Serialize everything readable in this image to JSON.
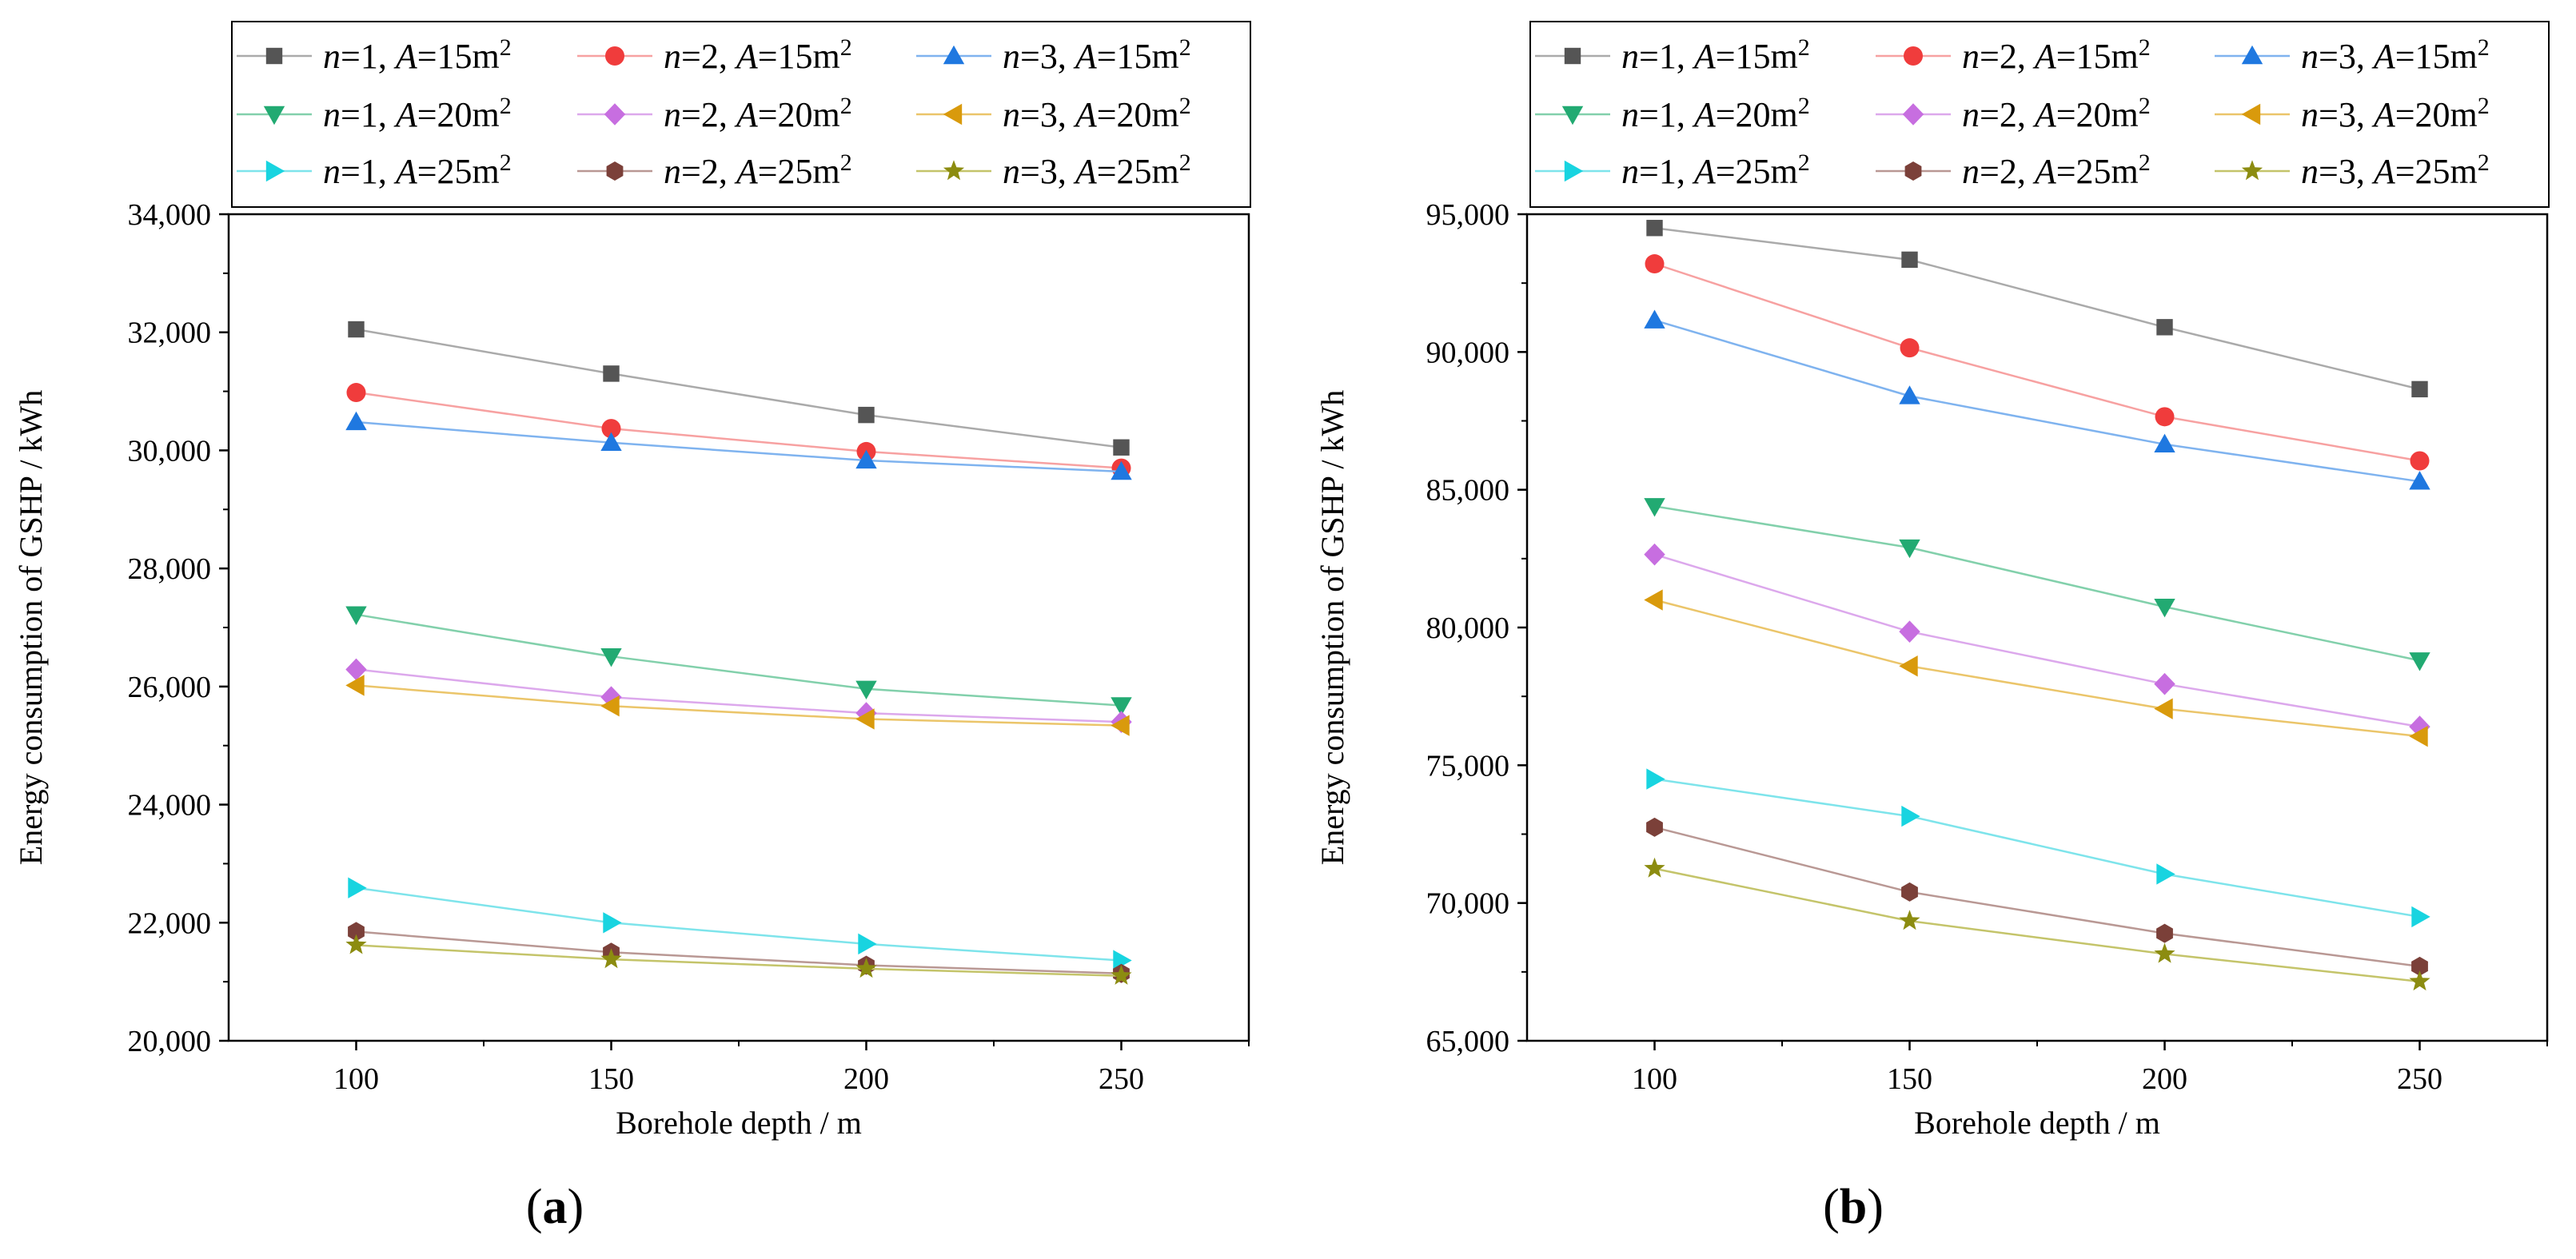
{
  "figure": {
    "marker_legend": {
      "square": "square-marker",
      "circle": "circle-marker",
      "triangle-up": "triangle-up-marker",
      "triangle-down": "triangle-down-marker",
      "diamond": "diamond-marker",
      "triangle-left": "triangle-left-marker",
      "triangle-right": "triangle-right-marker",
      "hexagon": "hexagon-marker",
      "star": "star-marker"
    }
  },
  "chart_data": [
    {
      "type": "line",
      "panel_label": "a",
      "panel_label_text": "(a)",
      "xlabel": "Borehole depth / m",
      "ylabel": "Energy consumption of GSHP / kWh",
      "x": [
        100,
        150,
        200,
        250
      ],
      "xlim": [
        75,
        275
      ],
      "xticks": [
        "100",
        "150",
        "200",
        "250"
      ],
      "ylim": [
        20000,
        34000
      ],
      "yticks": [
        "20,000",
        "22,000",
        "24,000",
        "26,000",
        "28,000",
        "30,000",
        "32,000",
        "34,000"
      ],
      "grid": false,
      "legend_position": "top",
      "series": [
        {
          "name": "n=1, A=15m2",
          "n": "1",
          "A": "15",
          "color": "#555555",
          "line_color": "#aaaaaa",
          "marker": "square",
          "values": [
            32050,
            31300,
            30600,
            30050
          ]
        },
        {
          "name": "n=2, A=15m2",
          "n": "2",
          "A": "15",
          "color": "#f03c3c",
          "line_color": "#f7a1a1",
          "marker": "circle",
          "values": [
            30980,
            30370,
            29980,
            29700
          ]
        },
        {
          "name": "n=3, A=15m2",
          "n": "3",
          "A": "15",
          "color": "#1f78e0",
          "line_color": "#7fb3ef",
          "marker": "triangle-up",
          "values": [
            30480,
            30130,
            29830,
            29640
          ]
        },
        {
          "name": "n=1, A=20m2",
          "n": "1",
          "A": "20",
          "color": "#22aa72",
          "line_color": "#82d0ab",
          "marker": "triangle-down",
          "values": [
            27220,
            26510,
            25960,
            25680
          ]
        },
        {
          "name": "n=2, A=20m2",
          "n": "2",
          "A": "20",
          "color": "#c76ee0",
          "line_color": "#dca8ec",
          "marker": "diamond",
          "values": [
            26290,
            25820,
            25550,
            25400
          ]
        },
        {
          "name": "n=3, A=20m2",
          "n": "3",
          "A": "20",
          "color": "#d99a0c",
          "line_color": "#ebc56a",
          "marker": "triangle-left",
          "values": [
            26020,
            25670,
            25450,
            25340
          ]
        },
        {
          "name": "n=1, A=25m2",
          "n": "1",
          "A": "25",
          "color": "#18d4e0",
          "line_color": "#7ee4eb",
          "marker": "triangle-right",
          "values": [
            22590,
            22000,
            21640,
            21360
          ]
        },
        {
          "name": "n=2, A=25m2",
          "n": "2",
          "A": "25",
          "color": "#7b4039",
          "line_color": "#b99894",
          "marker": "hexagon",
          "values": [
            21850,
            21500,
            21280,
            21140
          ]
        },
        {
          "name": "n=3, A=25m2",
          "n": "3",
          "A": "25",
          "color": "#8c8c10",
          "line_color": "#c4c46a",
          "marker": "star",
          "values": [
            21620,
            21380,
            21220,
            21100
          ]
        }
      ]
    },
    {
      "type": "line",
      "panel_label": "b",
      "panel_label_text": "(b)",
      "xlabel": "Borehole depth / m",
      "ylabel": "Energy consumption of GSHP / kWh",
      "x": [
        100,
        150,
        200,
        250
      ],
      "xlim": [
        75,
        275
      ],
      "xticks": [
        "100",
        "150",
        "200",
        "250"
      ],
      "ylim": [
        65000,
        95000
      ],
      "yticks": [
        "65,000",
        "70,000",
        "75,000",
        "80,000",
        "85,000",
        "90,000",
        "95,000"
      ],
      "grid": false,
      "legend_position": "top",
      "series": [
        {
          "name": "n=1, A=15m2",
          "n": "1",
          "A": "15",
          "color": "#555555",
          "line_color": "#aaaaaa",
          "marker": "square",
          "values": [
            94500,
            93350,
            90900,
            88650
          ]
        },
        {
          "name": "n=2, A=15m2",
          "n": "2",
          "A": "15",
          "color": "#f03c3c",
          "line_color": "#f7a1a1",
          "marker": "circle",
          "values": [
            93200,
            90150,
            87650,
            86050
          ]
        },
        {
          "name": "n=3, A=15m2",
          "n": "3",
          "A": "15",
          "color": "#1f78e0",
          "line_color": "#7fb3ef",
          "marker": "triangle-up",
          "values": [
            91150,
            88400,
            86650,
            85300
          ]
        },
        {
          "name": "n=1, A=20m2",
          "n": "1",
          "A": "20",
          "color": "#22aa72",
          "line_color": "#82d0ab",
          "marker": "triangle-down",
          "values": [
            84400,
            82900,
            80750,
            78800
          ]
        },
        {
          "name": "n=2, A=20m2",
          "n": "2",
          "A": "20",
          "color": "#c76ee0",
          "line_color": "#dca8ec",
          "marker": "diamond",
          "values": [
            82650,
            79850,
            77950,
            76400
          ]
        },
        {
          "name": "n=3, A=20m2",
          "n": "3",
          "A": "20",
          "color": "#d99a0c",
          "line_color": "#ebc56a",
          "marker": "triangle-left",
          "values": [
            81000,
            78600,
            77050,
            76050
          ]
        },
        {
          "name": "n=1, A=25m2",
          "n": "1",
          "A": "25",
          "color": "#18d4e0",
          "line_color": "#7ee4eb",
          "marker": "triangle-right",
          "values": [
            74500,
            73150,
            71050,
            69500
          ]
        },
        {
          "name": "n=2, A=25m2",
          "n": "2",
          "A": "25",
          "color": "#7b4039",
          "line_color": "#b99894",
          "marker": "hexagon",
          "values": [
            72750,
            70400,
            68900,
            67700
          ]
        },
        {
          "name": "n=3, A=25m2",
          "n": "3",
          "A": "25",
          "color": "#8c8c10",
          "line_color": "#c4c46a",
          "marker": "star",
          "values": [
            71250,
            69350,
            68150,
            67150
          ]
        }
      ]
    }
  ]
}
